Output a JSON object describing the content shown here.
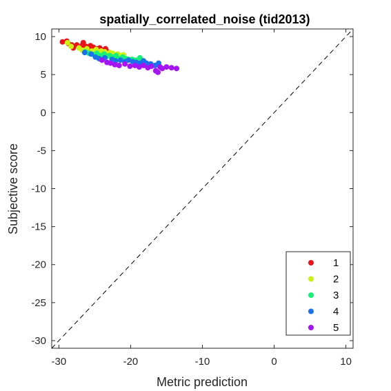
{
  "chart_data": {
    "type": "scatter",
    "title": "spatially_correlated_noise (tid2013)",
    "xlabel": "Metric prediction",
    "ylabel": "Subjective score",
    "xlim": [
      -31,
      11
    ],
    "ylim": [
      -31,
      11
    ],
    "xticks": [
      -30,
      -20,
      -10,
      0,
      10
    ],
    "yticks": [
      -30,
      -25,
      -20,
      -15,
      -10,
      -5,
      0,
      5,
      10
    ],
    "grid": false,
    "box": true,
    "legend_position": "bottom-right",
    "reference_line": {
      "style": "dashed",
      "color": "#000000",
      "from": [
        -31,
        -31
      ],
      "to": [
        11,
        11
      ]
    },
    "series": [
      {
        "name": "1",
        "color": "#e8141c",
        "points": [
          [
            -29.5,
            9.3
          ],
          [
            -28.9,
            9.4
          ],
          [
            -28.7,
            9.1
          ],
          [
            -28.2,
            8.9
          ],
          [
            -28.0,
            8.5
          ],
          [
            -27.5,
            8.9
          ],
          [
            -27.2,
            8.6
          ],
          [
            -26.8,
            8.8
          ],
          [
            -26.6,
            9.2
          ],
          [
            -26.2,
            8.7
          ],
          [
            -25.9,
            8.4
          ],
          [
            -25.6,
            8.8
          ],
          [
            -25.2,
            8.6
          ],
          [
            -24.9,
            8.3
          ],
          [
            -24.6,
            8.4
          ],
          [
            -24.3,
            8.5
          ],
          [
            -23.9,
            8.2
          ],
          [
            -23.5,
            8.4
          ],
          [
            -23.2,
            8.0
          ]
        ]
      },
      {
        "name": "2",
        "color": "#cdf013",
        "points": [
          [
            -28.8,
            9.2
          ],
          [
            -28.3,
            8.7
          ],
          [
            -27.2,
            8.5
          ],
          [
            -26.7,
            8.2
          ],
          [
            -26.1,
            8.4
          ],
          [
            -25.4,
            8.1
          ],
          [
            -24.8,
            8.3
          ],
          [
            -24.5,
            7.9
          ],
          [
            -24.1,
            8.1
          ],
          [
            -23.6,
            8.0
          ],
          [
            -23.3,
            7.7
          ],
          [
            -22.9,
            7.9
          ],
          [
            -22.5,
            7.8
          ],
          [
            -22.2,
            7.6
          ],
          [
            -21.8,
            7.7
          ],
          [
            -21.4,
            7.5
          ],
          [
            -21.0,
            7.6
          ]
        ]
      },
      {
        "name": "3",
        "color": "#18f07a",
        "points": [
          [
            -26.3,
            8.0
          ],
          [
            -25.8,
            7.8
          ],
          [
            -25.1,
            7.6
          ],
          [
            -24.7,
            7.8
          ],
          [
            -24.2,
            7.5
          ],
          [
            -23.7,
            7.7
          ],
          [
            -23.3,
            7.4
          ],
          [
            -22.9,
            7.5
          ],
          [
            -22.4,
            7.3
          ],
          [
            -22.0,
            7.5
          ],
          [
            -21.6,
            7.1
          ],
          [
            -21.1,
            7.3
          ],
          [
            -20.7,
            7.1
          ],
          [
            -20.3,
            7.0
          ],
          [
            -19.8,
            7.0
          ],
          [
            -19.3,
            6.9
          ],
          [
            -18.7,
            7.2
          ],
          [
            -18.3,
            6.8
          ]
        ]
      },
      {
        "name": "4",
        "color": "#1a72ea",
        "points": [
          [
            -26.4,
            7.9
          ],
          [
            -25.5,
            7.7
          ],
          [
            -24.9,
            7.3
          ],
          [
            -24.4,
            7.1
          ],
          [
            -23.6,
            7.2
          ],
          [
            -22.6,
            7.0
          ],
          [
            -22.1,
            6.8
          ],
          [
            -21.4,
            6.9
          ],
          [
            -20.8,
            6.7
          ],
          [
            -20.3,
            6.9
          ],
          [
            -19.7,
            6.7
          ],
          [
            -19.2,
            6.6
          ],
          [
            -18.7,
            6.5
          ],
          [
            -18.2,
            6.8
          ],
          [
            -17.8,
            6.5
          ],
          [
            -17.2,
            6.4
          ],
          [
            -16.6,
            6.2
          ],
          [
            -16.1,
            6.5
          ]
        ]
      },
      {
        "name": "5",
        "color": "#a515f3",
        "points": [
          [
            -24.0,
            6.9
          ],
          [
            -23.3,
            6.6
          ],
          [
            -22.8,
            6.5
          ],
          [
            -22.2,
            6.3
          ],
          [
            -21.6,
            6.2
          ],
          [
            -20.8,
            6.4
          ],
          [
            -20.1,
            6.1
          ],
          [
            -19.4,
            6.2
          ],
          [
            -18.8,
            6.0
          ],
          [
            -18.2,
            6.2
          ],
          [
            -17.6,
            5.9
          ],
          [
            -17.1,
            6.1
          ],
          [
            -16.5,
            5.5
          ],
          [
            -16.2,
            5.3
          ],
          [
            -15.9,
            6.0
          ],
          [
            -15.6,
            5.8
          ],
          [
            -15.0,
            6.0
          ],
          [
            -14.3,
            5.9
          ],
          [
            -13.6,
            5.8
          ]
        ]
      }
    ]
  }
}
